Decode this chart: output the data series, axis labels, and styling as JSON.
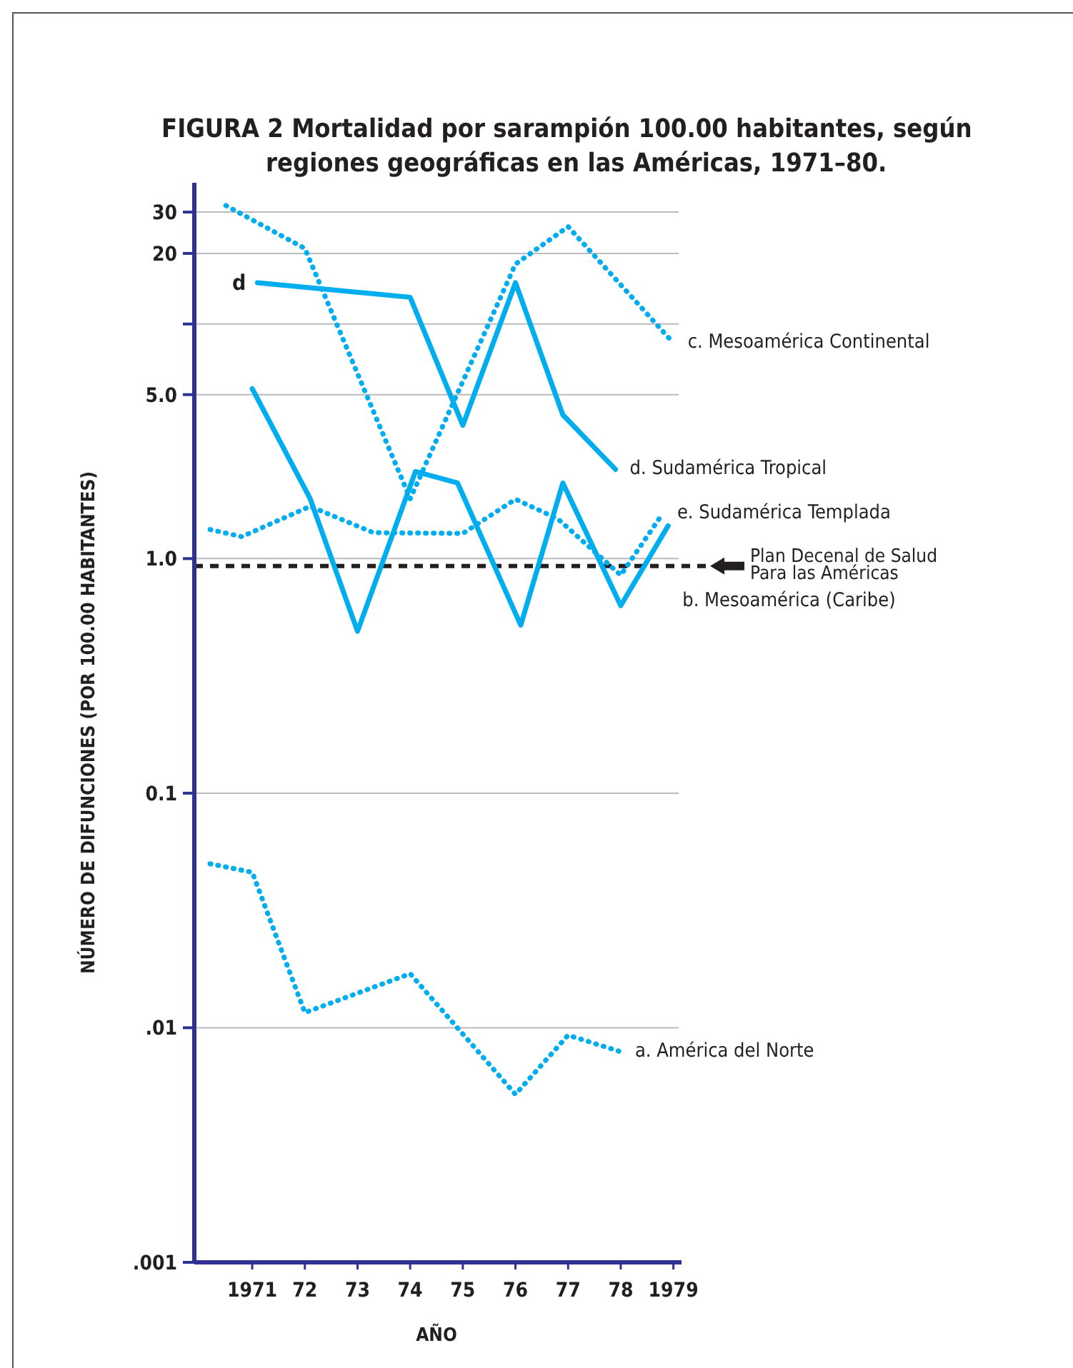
{
  "chart_data": {
    "type": "line",
    "title": "FIGURA 2 Mortalidad por sarampión 100.00 habitantes, según regiones geográficas en las Américas, 1971–80.",
    "xlabel": "AÑO",
    "ylabel": "NÚMERO DE DIFUNCIONES (POR 100.00 HABITANTES)",
    "log": "y",
    "grid": "y",
    "xlim": [
      1969.9,
      1979.1
    ],
    "ylim": [
      0.001,
      40
    ],
    "xticks": [
      1971,
      {
        "value": 1972,
        "label": "72"
      },
      {
        "value": 1973,
        "label": "73"
      },
      {
        "value": 1974,
        "label": "74"
      },
      {
        "value": 1975,
        "label": "75"
      },
      {
        "value": 1976,
        "label": "76"
      },
      {
        "value": 1977,
        "label": "77"
      },
      {
        "value": 1978,
        "label": "78"
      },
      1979
    ],
    "yticks": [
      {
        "value": 0.001,
        "label": ".001"
      },
      {
        "value": 0.01,
        "label": ".01"
      },
      0.1,
      {
        "value": 1,
        "label": "1.0"
      },
      {
        "value": 5,
        "label": "5.0"
      },
      {
        "value": 10,
        "label": null
      },
      20,
      30
    ],
    "series": [
      {
        "name": "c. Mesoamérica Continental",
        "color": "#00aeef",
        "line_style": "dotted",
        "x": [
          1970.5,
          1972,
          1974,
          1976,
          1977,
          1979
        ],
        "values": [
          32,
          21,
          1.8,
          18,
          26,
          8.3
        ]
      },
      {
        "name": "d. Sudamérica Tropical",
        "color": "#00aeef",
        "line_style": "solid",
        "x": [
          1971.1,
          1974,
          1975,
          1976,
          1976.9,
          1977.9
        ],
        "values": [
          15,
          13,
          3.7,
          15,
          4.1,
          2.4
        ]
      },
      {
        "name": "e. Sudamérica Templada",
        "color": "#00aeef",
        "line_style": "dotted",
        "x": [
          1970.2,
          1970.8,
          1972.1,
          1973.3,
          1975,
          1976,
          1976.8,
          1978,
          1978.8
        ],
        "values": [
          1.33,
          1.24,
          1.67,
          1.29,
          1.28,
          1.79,
          1.48,
          0.85,
          1.56
        ]
      },
      {
        "name": "b. Mesoamérica (Caribe)",
        "color": "#00aeef",
        "line_style": "solid",
        "x": [
          1971,
          1972.1,
          1973,
          1974.1,
          1974.9,
          1976.1,
          1976.9,
          1978,
          1978.9
        ],
        "values": [
          5.3,
          1.8,
          0.49,
          2.35,
          2.1,
          0.52,
          2.1,
          0.63,
          1.38
        ]
      },
      {
        "name": "a. América del Norte",
        "color": "#00aeef",
        "line_style": "dotted",
        "x": [
          1970.2,
          1971,
          1972,
          1974,
          1976,
          1977,
          1978
        ],
        "values": [
          0.05,
          0.046,
          0.0116,
          0.017,
          0.0052,
          0.0093,
          0.0079
        ]
      }
    ],
    "ref_lines": [
      {
        "axis": "y",
        "value": 0.93,
        "label": "Plan Decenal de Salud\nPara las Américas",
        "color": "#231f20",
        "line_style": "dashed"
      }
    ],
    "annotations": [
      {
        "text": "d",
        "x": 1971.1,
        "y": 15
      }
    ]
  }
}
